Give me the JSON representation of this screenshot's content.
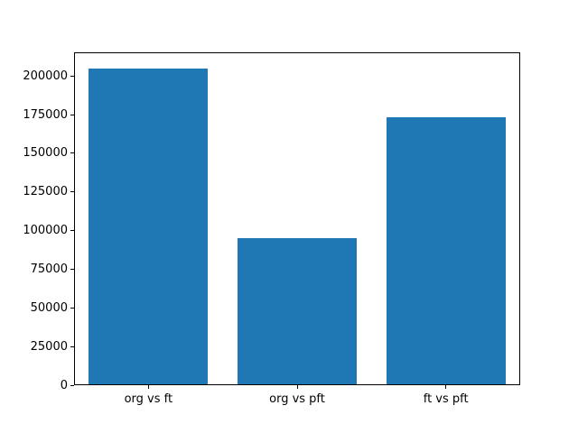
{
  "figure": {
    "background_color": "#ffffff",
    "axis_color": "#000000"
  },
  "chart_data": {
    "type": "bar",
    "title": "",
    "xlabel": "",
    "ylabel": "",
    "categories": [
      "org vs ft",
      "org vs pft",
      "ft vs pft"
    ],
    "values": [
      205000,
      95000,
      173000
    ],
    "yticks": [
      0,
      25000,
      50000,
      75000,
      100000,
      125000,
      150000,
      175000,
      200000
    ],
    "ytick_labels": [
      "0",
      "25000",
      "50000",
      "75000",
      "100000",
      "125000",
      "150000",
      "175000",
      "200000"
    ],
    "ylim": [
      0,
      215250
    ],
    "bar_color": "#1f77b4",
    "bar_width_fraction": 0.8,
    "grid": false,
    "legend": null
  }
}
